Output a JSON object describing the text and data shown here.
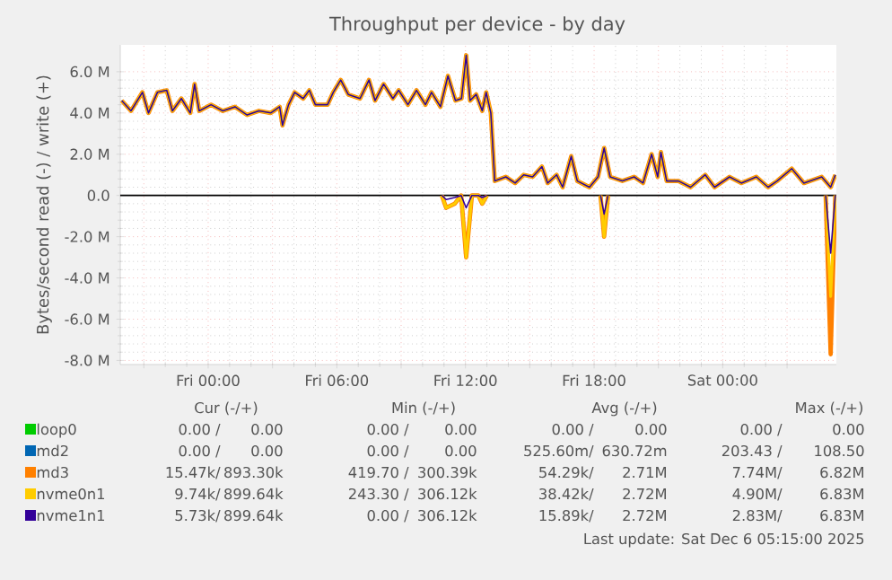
{
  "chart_data": {
    "type": "line",
    "title": "Throughput per device - by day",
    "ylabel": "Bytes/second read (-) / write (+)",
    "x": [
      "2025-12-04T19:58",
      "2025-12-04T20:24",
      "2025-12-04T20:56",
      "2025-12-04T21:13",
      "2025-12-04T21:38",
      "2025-12-04T22:04",
      "2025-12-04T22:20",
      "2025-12-04T22:45",
      "2025-12-04T23:10",
      "2025-12-04T23:22",
      "2025-12-04T23:35",
      "2025-12-05T00:08",
      "2025-12-05T00:41",
      "2025-12-05T01:15",
      "2025-12-05T01:49",
      "2025-12-05T02:22",
      "2025-12-05T02:55",
      "2025-12-05T03:20",
      "2025-12-05T03:28",
      "2025-12-05T03:45",
      "2025-12-05T04:02",
      "2025-12-05T04:26",
      "2025-12-05T04:43",
      "2025-12-05T05:00",
      "2025-12-05T05:34",
      "2025-12-05T05:50",
      "2025-12-05T06:11",
      "2025-12-05T06:32",
      "2025-12-05T07:05",
      "2025-12-05T07:30",
      "2025-12-05T07:47",
      "2025-12-05T08:11",
      "2025-12-05T08:37",
      "2025-12-05T08:53",
      "2025-12-05T09:19",
      "2025-12-05T09:43",
      "2025-12-05T10:08",
      "2025-12-05T10:25",
      "2025-12-05T10:50",
      "2025-12-05T11:11",
      "2025-12-05T11:32",
      "2025-12-05T11:49",
      "2025-12-05T12:02",
      "2025-12-05T12:13",
      "2025-12-05T12:30",
      "2025-12-05T12:47",
      "2025-12-05T12:58",
      "2025-12-05T13:11",
      "2025-12-05T13:22",
      "2025-12-05T13:53",
      "2025-12-05T14:19",
      "2025-12-05T14:43",
      "2025-12-05T15:08",
      "2025-12-05T15:34",
      "2025-12-05T15:50",
      "2025-12-05T16:15",
      "2025-12-05T16:32",
      "2025-12-05T16:56",
      "2025-12-05T17:13",
      "2025-12-05T17:47",
      "2025-12-05T18:11",
      "2025-12-05T18:28",
      "2025-12-05T18:45",
      "2025-12-05T19:19",
      "2025-12-05T19:52",
      "2025-12-05T20:17",
      "2025-12-05T20:41",
      "2025-12-05T20:58",
      "2025-12-05T21:07",
      "2025-12-05T21:23",
      "2025-12-05T21:56",
      "2025-12-05T22:30",
      "2025-12-05T23:11",
      "2025-12-05T23:37",
      "2025-12-06T00:19",
      "2025-12-06T00:52",
      "2025-12-06T01:34",
      "2025-12-06T02:07",
      "2025-12-06T02:32",
      "2025-12-06T03:13",
      "2025-12-06T03:47",
      "2025-12-06T04:37",
      "2025-12-06T05:02",
      "2025-12-06T05:15"
    ],
    "series": [
      {
        "name": "loop0",
        "color": "#00cc00",
        "values": [
          null,
          null,
          null,
          null,
          null,
          null,
          null,
          null,
          null,
          null,
          null,
          null,
          null,
          null,
          null,
          null,
          null,
          null,
          null,
          null,
          null,
          null,
          null,
          null,
          null,
          null,
          null,
          null,
          null,
          null,
          null,
          null,
          null,
          null,
          null,
          null,
          null,
          null,
          null,
          null,
          null,
          null,
          null,
          null,
          null,
          null,
          null,
          null,
          null,
          null,
          null,
          null,
          null,
          null,
          null,
          null,
          null,
          null,
          null,
          null,
          null,
          null,
          null,
          null,
          null,
          null,
          null,
          null,
          null,
          null,
          null,
          null,
          null,
          null,
          null,
          null,
          null,
          null,
          null,
          null,
          null,
          null,
          null,
          null
        ]
      },
      {
        "name": "md2",
        "color": "#0066b3",
        "values": [
          null,
          null,
          null,
          null,
          null,
          null,
          null,
          null,
          null,
          null,
          null,
          null,
          null,
          null,
          null,
          null,
          null,
          null,
          null,
          null,
          null,
          null,
          null,
          null,
          null,
          null,
          null,
          null,
          null,
          null,
          null,
          null,
          null,
          null,
          null,
          null,
          null,
          null,
          null,
          null,
          null,
          null,
          null,
          null,
          null,
          null,
          null,
          null,
          null,
          null,
          null,
          null,
          null,
          null,
          null,
          null,
          null,
          null,
          null,
          null,
          null,
          null,
          null,
          null,
          null,
          null,
          null,
          null,
          null,
          null,
          null,
          null,
          null,
          null,
          null,
          null,
          null,
          null,
          null,
          null,
          null,
          null,
          null,
          null
        ]
      },
      {
        "name": "md3",
        "color": "#ff8000",
        "values": [
          4.6,
          4.1,
          5.0,
          4.0,
          5.0,
          5.1,
          4.1,
          4.7,
          4.0,
          5.4,
          4.1,
          4.4,
          4.1,
          4.3,
          3.9,
          4.1,
          4.0,
          4.3,
          3.4,
          4.4,
          5.0,
          4.7,
          5.1,
          4.4,
          4.4,
          5.0,
          5.6,
          4.9,
          4.7,
          5.6,
          4.6,
          5.4,
          4.7,
          5.1,
          4.4,
          5.1,
          4.4,
          5.0,
          4.3,
          5.8,
          4.6,
          4.7,
          6.8,
          4.6,
          4.9,
          4.1,
          5.0,
          4.0,
          0.7,
          0.9,
          0.6,
          1.0,
          0.9,
          1.4,
          0.6,
          1.0,
          0.4,
          1.9,
          0.7,
          0.4,
          0.9,
          2.3,
          0.9,
          0.7,
          0.9,
          0.6,
          2.0,
          0.9,
          2.1,
          0.7,
          0.7,
          0.4,
          1.0,
          0.4,
          0.9,
          0.6,
          0.9,
          0.4,
          0.7,
          1.3,
          0.6,
          0.9,
          0.4,
          1.0
        ]
      },
      {
        "color": "#ff8000",
        "x": [
          "2025-12-05T10:54",
          "2025-12-05T11:06",
          "2025-12-05T11:30",
          "2025-12-05T11:48",
          "2025-12-05T12:02",
          "2025-12-05T12:18",
          "2025-12-05T12:36",
          "2025-12-05T12:47",
          "2025-12-05T13:00",
          "2025-12-05T15:00",
          "2025-12-05T18:18",
          "2025-12-05T18:28",
          "2025-12-05T18:39",
          "2025-12-06T00:00",
          "2025-12-06T04:48",
          "2025-12-06T05:02",
          "2025-12-06T05:15"
        ],
        "values": [
          0,
          -0.6,
          -0.4,
          0,
          -3.0,
          0,
          0,
          -0.4,
          0,
          null,
          0,
          -2.0,
          0,
          null,
          0,
          -7.7,
          0
        ]
      },
      {
        "name": "nvme0n1",
        "color": "#ffcc00",
        "values": [
          4.6,
          4.1,
          5.0,
          4.0,
          5.0,
          5.1,
          4.1,
          4.7,
          4.0,
          5.4,
          4.1,
          4.4,
          4.1,
          4.3,
          3.9,
          4.1,
          4.0,
          4.3,
          3.4,
          4.4,
          5.0,
          4.7,
          5.1,
          4.4,
          4.4,
          5.0,
          5.6,
          4.9,
          4.7,
          5.6,
          4.6,
          5.4,
          4.7,
          5.1,
          4.4,
          5.1,
          4.4,
          5.0,
          4.3,
          5.8,
          4.6,
          4.7,
          6.8,
          4.6,
          4.9,
          4.1,
          5.0,
          4.0,
          0.7,
          0.9,
          0.6,
          1.0,
          0.9,
          1.4,
          0.6,
          1.0,
          0.4,
          1.9,
          0.7,
          0.4,
          0.9,
          2.3,
          0.9,
          0.7,
          0.9,
          0.6,
          2.0,
          0.9,
          2.1,
          0.7,
          0.7,
          0.4,
          1.0,
          0.4,
          0.9,
          0.6,
          0.9,
          0.4,
          0.7,
          1.3,
          0.6,
          0.9,
          0.4,
          1.0
        ]
      },
      {
        "color": "#ffcc00",
        "x": [
          "2025-12-05T10:54",
          "2025-12-05T11:06",
          "2025-12-05T11:30",
          "2025-12-05T11:48",
          "2025-12-05T12:02",
          "2025-12-05T12:18",
          "2025-12-05T12:36",
          "2025-12-05T12:47",
          "2025-12-05T13:00",
          "2025-12-05T15:00",
          "2025-12-05T18:18",
          "2025-12-05T18:28",
          "2025-12-05T18:39",
          "2025-12-06T00:00",
          "2025-12-06T04:48",
          "2025-12-06T05:02",
          "2025-12-06T05:15"
        ],
        "values": [
          0,
          -0.6,
          -0.4,
          0,
          -3.0,
          0,
          0,
          -0.4,
          0,
          null,
          0,
          -2.0,
          0,
          null,
          0,
          -4.9,
          0
        ]
      },
      {
        "name": "nvme1n1",
        "color": "#330099",
        "values": [
          4.6,
          4.1,
          5.0,
          4.0,
          5.0,
          5.1,
          4.1,
          4.7,
          4.0,
          5.4,
          4.1,
          4.4,
          4.1,
          4.3,
          3.9,
          4.1,
          4.0,
          4.3,
          3.4,
          4.4,
          5.0,
          4.7,
          5.1,
          4.4,
          4.4,
          5.0,
          5.6,
          4.9,
          4.7,
          5.6,
          4.6,
          5.4,
          4.7,
          5.1,
          4.4,
          5.1,
          4.4,
          5.0,
          4.3,
          5.8,
          4.6,
          4.7,
          6.8,
          4.6,
          4.9,
          4.1,
          5.0,
          4.0,
          0.7,
          0.9,
          0.6,
          1.0,
          0.9,
          1.4,
          0.6,
          1.0,
          0.4,
          1.9,
          0.7,
          0.4,
          0.9,
          2.3,
          0.9,
          0.7,
          0.9,
          0.6,
          2.0,
          0.9,
          2.1,
          0.7,
          0.7,
          0.4,
          1.0,
          0.4,
          0.9,
          0.6,
          0.9,
          0.4,
          0.7,
          1.3,
          0.6,
          0.9,
          0.4,
          1.0
        ]
      },
      {
        "color": "#330099",
        "x": [
          "2025-12-05T10:54",
          "2025-12-05T11:06",
          "2025-12-05T11:30",
          "2025-12-05T11:48",
          "2025-12-05T12:02",
          "2025-12-05T12:18",
          "2025-12-05T12:36",
          "2025-12-05T12:47",
          "2025-12-05T13:00",
          "2025-12-05T15:00",
          "2025-12-05T18:18",
          "2025-12-05T18:28",
          "2025-12-05T18:39",
          "2025-12-06T00:00",
          "2025-12-06T04:48",
          "2025-12-06T05:02",
          "2025-12-06T05:15"
        ],
        "values": [
          0,
          -0.2,
          -0.1,
          0,
          -0.6,
          0,
          0,
          -0.1,
          0,
          null,
          0,
          -0.9,
          0,
          null,
          0,
          -2.8,
          0
        ]
      }
    ],
    "xlim": [
      "2025-12-04T19:54",
      "2025-12-06T05:18"
    ],
    "ylim": [
      -8.2,
      7.3
    ],
    "xticks": [
      {
        "value": "2025-12-04T21:00",
        "label": null
      },
      {
        "value": "2025-12-05T00:00",
        "label": "Fri 00:00"
      },
      {
        "value": "2025-12-05T03:00",
        "label": null
      },
      {
        "value": "2025-12-05T06:00",
        "label": "Fri 06:00"
      },
      {
        "value": "2025-12-05T09:00",
        "label": null
      },
      {
        "value": "2025-12-05T12:00",
        "label": "Fri 12:00"
      },
      {
        "value": "2025-12-05T15:00",
        "label": null
      },
      {
        "value": "2025-12-05T18:00",
        "label": "Fri 18:00"
      },
      {
        "value": "2025-12-05T21:00",
        "label": null
      },
      {
        "value": "2025-12-06T00:00",
        "label": "Sat 00:00"
      },
      {
        "value": "2025-12-06T03:00",
        "label": null
      }
    ],
    "yticks": [
      {
        "value": -8,
        "label": "-8.0 M"
      },
      {
        "value": -6,
        "label": "-6.0 M"
      },
      {
        "value": -4,
        "label": "-4.0 M"
      },
      {
        "value": -2,
        "label": "-2.0 M"
      },
      {
        "value": 0,
        "label": "0.0"
      },
      {
        "value": 2,
        "label": "2.0 M"
      },
      {
        "value": 4,
        "label": "4.0 M"
      },
      {
        "value": 6,
        "label": "6.0 M"
      }
    ],
    "grid": true,
    "legend": "bottom",
    "ref_lines": [
      {
        "axis": "y",
        "value": 0,
        "color": "#000000"
      }
    ],
    "annotations": [
      "Cur (-/+)",
      "Min (-/+)",
      "Avg (-/+)",
      "Max (-/+)",
      "0.00 /",
      "0.00",
      "0.00 /",
      "0.00",
      "0.00 /",
      "0.00",
      "0.00 /",
      "0.00",
      "0.00 /",
      "0.00",
      "0.00 /",
      "0.00",
      "525.60m/",
      "630.72m",
      "203.43 /",
      "108.50",
      "15.47k/",
      "893.30k",
      "419.70 /",
      "300.39k",
      "54.29k/",
      "2.71M",
      "7.74M/",
      "6.82M",
      "9.74k/",
      "899.64k",
      "243.30 /",
      "306.12k",
      "38.42k/",
      "2.72M",
      "4.90M/",
      "6.83M",
      "5.73k/",
      "899.64k",
      "0.00 /",
      "306.12k",
      "15.89k/",
      "2.72M",
      "2.83M/",
      "6.83M",
      "Last update: Sat Dec  6 05:15:00 2025"
    ]
  }
}
